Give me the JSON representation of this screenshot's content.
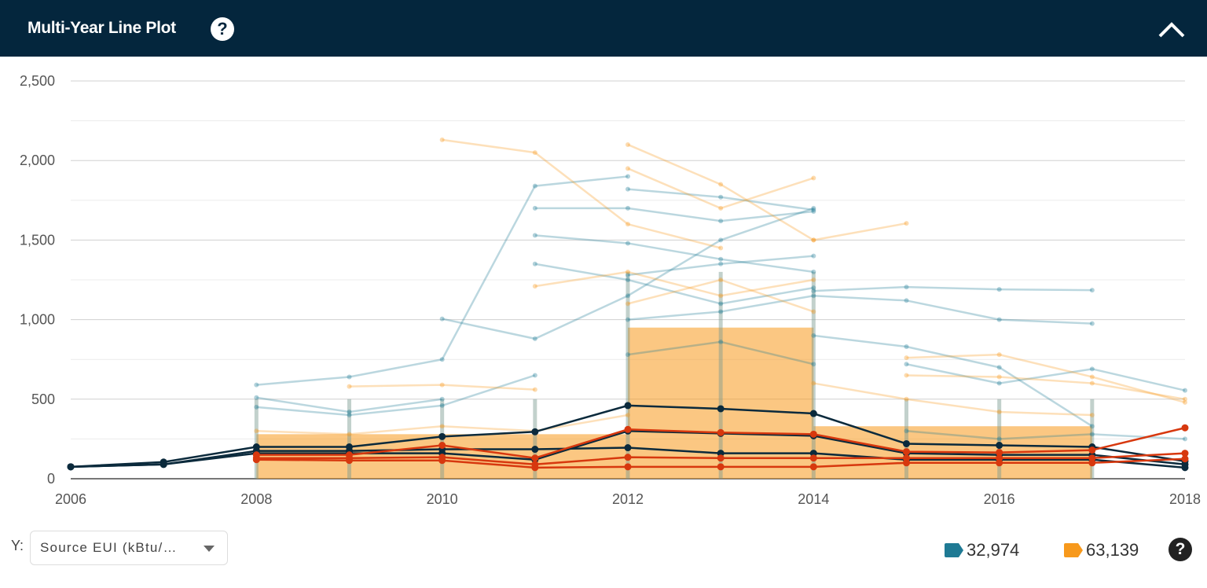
{
  "header": {
    "title": "Multi-Year Line Plot",
    "help_icon": "question-circle-icon",
    "collapse_icon": "chevron-up-icon"
  },
  "controls": {
    "y_label": "Y:",
    "y_select_value": "Source EUI (kBtu/…"
  },
  "legend": [
    {
      "color": "#1f7a94",
      "count": "32,974"
    },
    {
      "color": "#f7991c",
      "count": "63,139"
    }
  ],
  "footer_help_icon": "question-circle-icon",
  "chart_data": {
    "type": "line",
    "xlim": [
      2006,
      2018
    ],
    "ylim": [
      0,
      2500
    ],
    "x_ticks": [
      "2006",
      "2008",
      "2010",
      "2012",
      "2014",
      "2016",
      "2018"
    ],
    "y_ticks": [
      "0",
      "500",
      "1,000",
      "1,500",
      "2,000",
      "2,500"
    ],
    "grid": true,
    "colors": {
      "teal": "#1f7a94",
      "orange": "#f7991c",
      "highlight_dark": "#0b2a3c",
      "highlight_red": "#d7380e"
    },
    "density_bands": [
      {
        "color": "orange",
        "years": [
          2012,
          2014
        ],
        "range": [
          0,
          950
        ]
      },
      {
        "color": "orange",
        "years": [
          2008,
          2012
        ],
        "range": [
          0,
          280
        ]
      },
      {
        "color": "orange",
        "years": [
          2014,
          2017
        ],
        "range": [
          0,
          330
        ]
      }
    ],
    "background_series": [
      {
        "color": "teal",
        "x": [
          2008,
          2009,
          2010,
          2011,
          2012
        ],
        "y": [
          590,
          640,
          750,
          1840,
          1900
        ]
      },
      {
        "color": "teal",
        "x": [
          2008,
          2009,
          2010
        ],
        "y": [
          510,
          420,
          500
        ]
      },
      {
        "color": "teal",
        "x": [
          2010,
          2011,
          2012,
          2013,
          2014
        ],
        "y": [
          1005,
          880,
          1150,
          1500,
          1700
        ]
      },
      {
        "color": "teal",
        "x": [
          2011,
          2012,
          2013,
          2014
        ],
        "y": [
          1700,
          1700,
          1620,
          1680
        ]
      },
      {
        "color": "teal",
        "x": [
          2011,
          2012,
          2013,
          2014
        ],
        "y": [
          1530,
          1480,
          1380,
          1300
        ]
      },
      {
        "color": "teal",
        "x": [
          2011,
          2012,
          2013,
          2014
        ],
        "y": [
          1350,
          1250,
          1100,
          1200
        ]
      },
      {
        "color": "teal",
        "x": [
          2012,
          2013,
          2014
        ],
        "y": [
          1820,
          1770,
          1690
        ]
      },
      {
        "color": "teal",
        "x": [
          2012,
          2013,
          2014,
          2015,
          2016,
          2017
        ],
        "y": [
          1000,
          1050,
          1150,
          1120,
          1000,
          975
        ]
      },
      {
        "color": "teal",
        "x": [
          2014,
          2015,
          2016,
          2017
        ],
        "y": [
          1180,
          1205,
          1190,
          1185
        ]
      },
      {
        "color": "teal",
        "x": [
          2014,
          2015,
          2016,
          2017
        ],
        "y": [
          900,
          830,
          700,
          330
        ]
      },
      {
        "color": "teal",
        "x": [
          2015,
          2016,
          2017,
          2018
        ],
        "y": [
          720,
          600,
          690,
          555
        ]
      },
      {
        "color": "teal",
        "x": [
          2008,
          2009,
          2010,
          2011
        ],
        "y": [
          450,
          400,
          460,
          650
        ]
      },
      {
        "color": "teal",
        "x": [
          2012,
          2013,
          2014
        ],
        "y": [
          780,
          860,
          720
        ]
      },
      {
        "color": "teal",
        "x": [
          2012,
          2013,
          2014
        ],
        "y": [
          1280,
          1350,
          1400
        ]
      },
      {
        "color": "teal",
        "x": [
          2015,
          2016,
          2017,
          2018
        ],
        "y": [
          300,
          250,
          280,
          250
        ]
      },
      {
        "color": "orange",
        "x": [
          2010,
          2011,
          2012,
          2013
        ],
        "y": [
          2130,
          2050,
          1600,
          1450
        ]
      },
      {
        "color": "orange",
        "x": [
          2012,
          2013,
          2014
        ],
        "y": [
          2100,
          1850,
          1500
        ]
      },
      {
        "color": "orange",
        "x": [
          2012,
          2013,
          2014
        ],
        "y": [
          1950,
          1700,
          1890
        ]
      },
      {
        "color": "orange",
        "x": [
          2014,
          2015
        ],
        "y": [
          1500,
          1605
        ]
      },
      {
        "color": "orange",
        "x": [
          2011,
          2012,
          2013,
          2014
        ],
        "y": [
          1210,
          1300,
          1150,
          1250
        ]
      },
      {
        "color": "orange",
        "x": [
          2015,
          2016,
          2017,
          2018
        ],
        "y": [
          760,
          780,
          640,
          480
        ]
      },
      {
        "color": "orange",
        "x": [
          2015,
          2016,
          2017,
          2018
        ],
        "y": [
          650,
          640,
          600,
          500
        ]
      },
      {
        "color": "orange",
        "x": [
          2009,
          2010,
          2011
        ],
        "y": [
          580,
          590,
          560
        ]
      },
      {
        "color": "orange",
        "x": [
          2012,
          2013,
          2014
        ],
        "y": [
          1100,
          1250,
          1050
        ]
      },
      {
        "color": "orange",
        "x": [
          2008,
          2009,
          2010,
          2011,
          2012
        ],
        "y": [
          300,
          280,
          330,
          300,
          400
        ]
      },
      {
        "color": "orange",
        "x": [
          2014,
          2015,
          2016,
          2017
        ],
        "y": [
          600,
          500,
          420,
          400
        ]
      }
    ],
    "highlight_series": [
      {
        "color": "highlight_dark",
        "x": [
          2006,
          2007,
          2008,
          2009,
          2010,
          2011,
          2012,
          2013,
          2014,
          2015,
          2016,
          2017,
          2018
        ],
        "y": [
          75,
          105,
          200,
          200,
          265,
          295,
          460,
          440,
          410,
          220,
          210,
          200,
          110
        ]
      },
      {
        "color": "highlight_dark",
        "x": [
          2006,
          2007,
          2008,
          2009,
          2010,
          2011,
          2012,
          2013,
          2014,
          2015,
          2016,
          2017,
          2018
        ],
        "y": [
          75,
          90,
          175,
          175,
          185,
          185,
          195,
          160,
          160,
          120,
          120,
          120,
          70
        ]
      },
      {
        "color": "highlight_dark",
        "x": [
          2006,
          2007,
          2008,
          2009,
          2010,
          2011,
          2012,
          2013,
          2014,
          2015,
          2016,
          2017,
          2018
        ],
        "y": [
          75,
          90,
          160,
          160,
          160,
          120,
          300,
          285,
          270,
          160,
          150,
          150,
          90
        ]
      },
      {
        "color": "highlight_red",
        "x": [
          2008,
          2009,
          2010,
          2011,
          2012,
          2013,
          2014,
          2015,
          2016,
          2017,
          2018
        ],
        "y": [
          150,
          150,
          210,
          130,
          310,
          290,
          280,
          170,
          165,
          180,
          320
        ]
      },
      {
        "color": "highlight_red",
        "x": [
          2008,
          2009,
          2010,
          2011,
          2012,
          2013,
          2014,
          2015,
          2016,
          2017,
          2018
        ],
        "y": [
          130,
          130,
          135,
          90,
          135,
          130,
          130,
          130,
          130,
          130,
          160
        ]
      },
      {
        "color": "highlight_red",
        "x": [
          2008,
          2009,
          2010,
          2011,
          2012,
          2013,
          2014,
          2015,
          2016,
          2017,
          2018
        ],
        "y": [
          120,
          115,
          115,
          70,
          75,
          75,
          75,
          100,
          100,
          100,
          125
        ]
      }
    ]
  }
}
